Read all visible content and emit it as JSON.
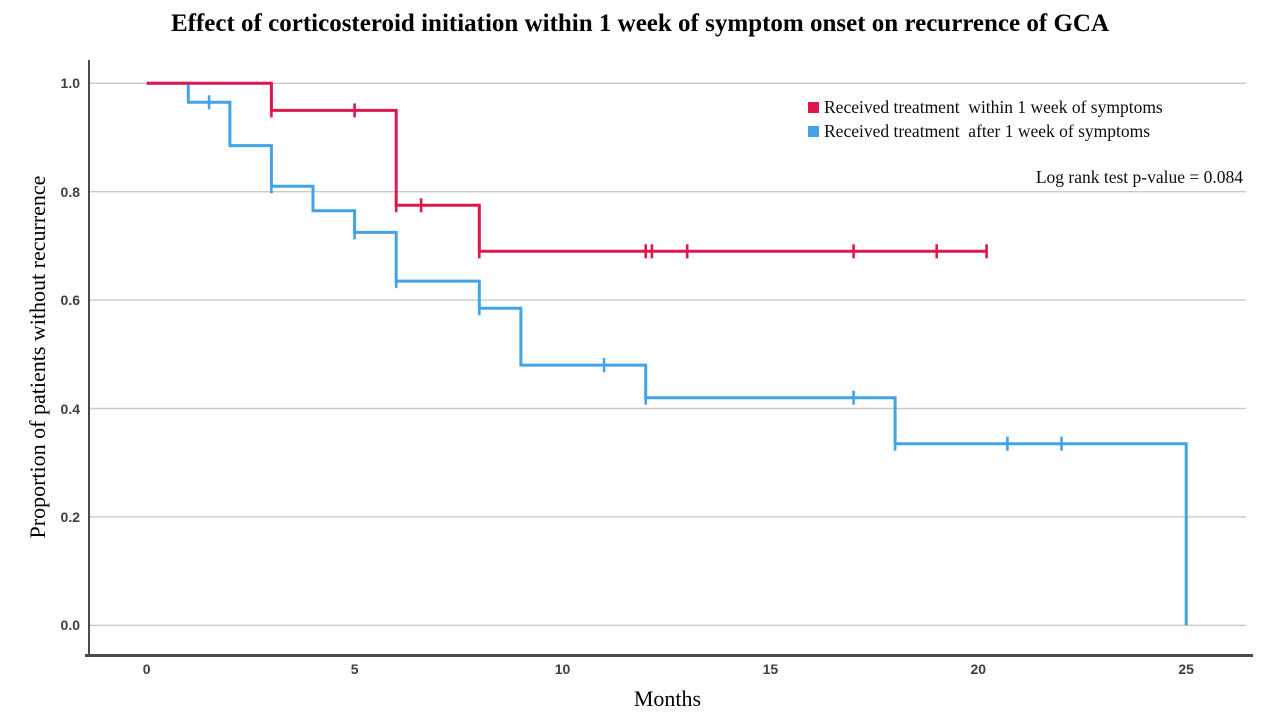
{
  "title": "Effect of corticosteroid initiation within 1 week of symptom onset on recurrence of GCA",
  "annotation": "Log rank test p-value = 0.084",
  "chart_data": {
    "type": "line",
    "subtype": "kaplan-meier-step",
    "title": "Effect of corticosteroid initiation within 1 week of symptom onset on recurrence of GCA",
    "xlabel": "Months",
    "ylabel": "Proportion of patients without recurrence",
    "xlim": [
      0,
      25
    ],
    "ylim": [
      0.0,
      1.0
    ],
    "xticks": [
      "0",
      "5",
      "10",
      "15",
      "20",
      "25"
    ],
    "yticks": [
      "0.0",
      "0.2",
      "0.4",
      "0.6",
      "0.8",
      "1.0"
    ],
    "grid": true,
    "grid_color": "#c9c9c9",
    "axis_color": "#4a4a4a",
    "legend_position": "top-right",
    "annotation": "Log rank test p-value = 0.084",
    "series": [
      {
        "name": "Received treatment  after 1 week of symptoms",
        "color": "#41a3e8",
        "steps": [
          [
            0,
            1.0
          ],
          [
            1,
            1.0
          ],
          [
            1,
            0.965
          ],
          [
            2,
            0.965
          ],
          [
            2,
            0.885
          ],
          [
            3,
            0.885
          ],
          [
            3,
            0.81
          ],
          [
            4,
            0.81
          ],
          [
            4,
            0.765
          ],
          [
            5,
            0.765
          ],
          [
            5,
            0.725
          ],
          [
            6,
            0.725
          ],
          [
            6,
            0.635
          ],
          [
            8,
            0.635
          ],
          [
            8,
            0.585
          ],
          [
            9,
            0.585
          ],
          [
            9,
            0.48
          ],
          [
            12,
            0.48
          ],
          [
            12,
            0.42
          ],
          [
            18,
            0.42
          ],
          [
            18,
            0.335
          ],
          [
            25,
            0.335
          ],
          [
            25,
            0.0
          ]
        ],
        "censor_marks": [
          [
            1.5,
            0.965
          ],
          [
            3,
            0.81
          ],
          [
            5,
            0.725
          ],
          [
            6,
            0.635
          ],
          [
            8,
            0.585
          ],
          [
            11,
            0.48
          ],
          [
            12,
            0.42
          ],
          [
            17,
            0.42
          ],
          [
            18,
            0.335
          ],
          [
            20.7,
            0.335
          ],
          [
            22,
            0.335
          ]
        ]
      },
      {
        "name": "Received treatment  within 1 week of symptoms",
        "color": "#e0164e",
        "steps": [
          [
            0,
            1.0
          ],
          [
            3,
            1.0
          ],
          [
            3,
            0.95
          ],
          [
            6,
            0.95
          ],
          [
            6,
            0.775
          ],
          [
            8,
            0.775
          ],
          [
            8,
            0.69
          ],
          [
            20.2,
            0.69
          ]
        ],
        "censor_marks": [
          [
            3,
            0.95
          ],
          [
            5,
            0.95
          ],
          [
            6,
            0.775
          ],
          [
            6.6,
            0.775
          ],
          [
            8,
            0.69
          ],
          [
            12,
            0.69
          ],
          [
            12.15,
            0.69
          ],
          [
            13,
            0.69
          ],
          [
            17,
            0.69
          ],
          [
            19,
            0.69
          ],
          [
            20.2,
            0.69
          ]
        ]
      }
    ],
    "legend_order": [
      1,
      0
    ]
  }
}
